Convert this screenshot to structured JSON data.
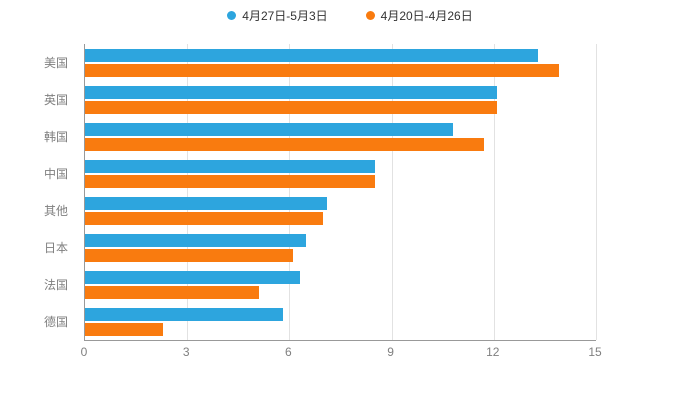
{
  "colors": {
    "series_blue": "#2DA5DE",
    "series_orange": "#F97B0F",
    "axis_line": "#999999",
    "gridline": "#e2e2e2",
    "label_text": "#7f7f7f",
    "legend_text": "#333333",
    "background": "#ffffff"
  },
  "chart_data": {
    "type": "bar",
    "orientation": "horizontal",
    "title": "",
    "xlabel": "",
    "ylabel": "",
    "xlim": [
      0,
      15
    ],
    "xticks": [
      0,
      3,
      6,
      9,
      12,
      15
    ],
    "grid": true,
    "legend_position": "top",
    "categories": [
      "美国",
      "英国",
      "韩国",
      "中国",
      "其他",
      "日本",
      "法国",
      "德国"
    ],
    "series": [
      {
        "name": "4月27日-5月3日",
        "color": "#2DA5DE",
        "values": [
          13.3,
          12.1,
          10.8,
          8.5,
          7.1,
          6.5,
          6.3,
          5.8
        ]
      },
      {
        "name": "4月20日-4月26日",
        "color": "#F97B0F",
        "values": [
          13.9,
          12.1,
          11.7,
          8.5,
          7.0,
          6.1,
          5.1,
          2.3
        ]
      }
    ]
  }
}
